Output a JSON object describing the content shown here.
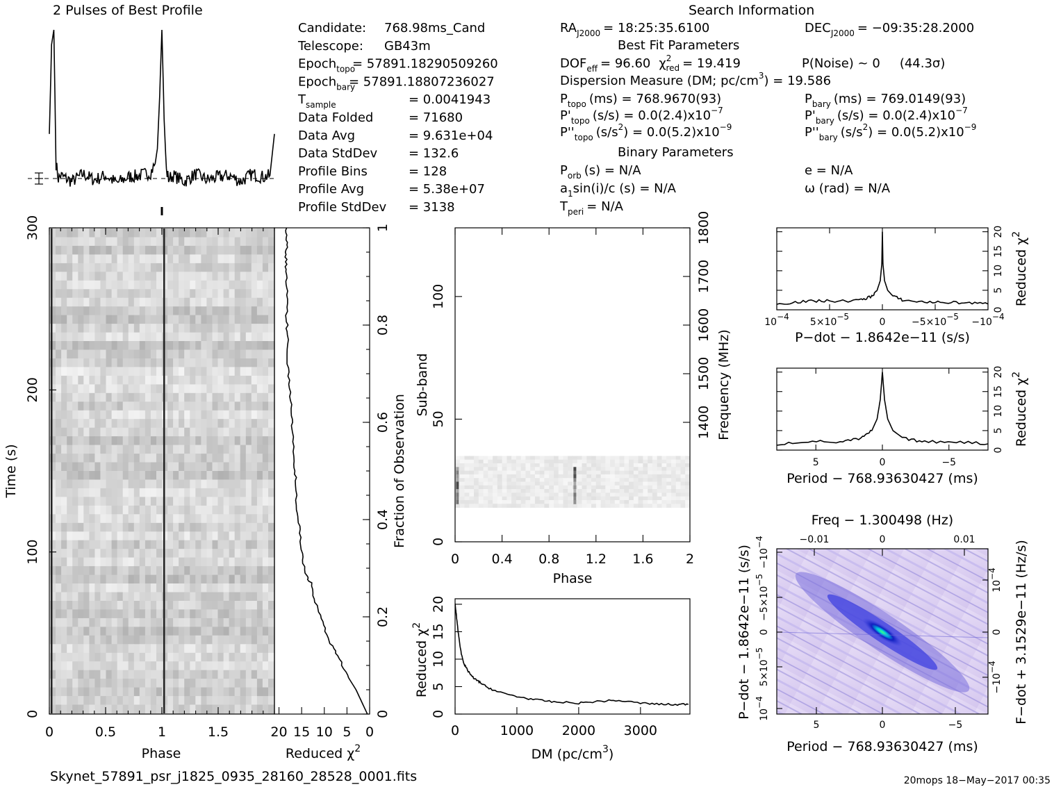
{
  "profile": {
    "title": "2 Pulses of Best Profile",
    "phases": [
      0.0,
      0.02,
      0.04,
      0.06,
      0.08,
      0.1,
      0.2,
      0.3,
      0.4,
      0.5,
      0.6,
      0.7,
      0.8,
      0.9,
      0.94,
      0.96,
      0.98,
      1.0,
      1.02,
      1.04,
      1.06,
      1.1,
      1.2,
      1.3,
      1.4,
      1.5,
      1.6,
      1.7,
      1.8,
      1.9,
      1.96,
      2.0
    ],
    "values": [
      0.3,
      0.9,
      1.0,
      0.1,
      0.0,
      0.02,
      -0.02,
      0.03,
      -0.01,
      0.02,
      -0.03,
      0.01,
      0.02,
      0.04,
      0.1,
      0.2,
      0.55,
      1.0,
      0.4,
      0.05,
      0.0,
      0.02,
      -0.02,
      0.03,
      -0.01,
      0.01,
      0.02,
      -0.02,
      0.03,
      0.01,
      0.02,
      0.3
    ]
  },
  "header": {
    "search_title": "Search Information",
    "left_col": [
      {
        "label": "Candidate:",
        "value": "768.98ms_Cand"
      },
      {
        "label": "Telescope:",
        "value": "GB43m"
      },
      {
        "label": "Epoch",
        "sub": "topo",
        "value": "= 57891.18290509260"
      },
      {
        "label": "Epoch",
        "sub": "bary",
        "value": "= 57891.18807236027"
      },
      {
        "label": "T",
        "sub": "sample",
        "value": "=   0.0041943"
      },
      {
        "label": "Data Folded",
        "value": "=   71680"
      },
      {
        "label": "Data Avg",
        "value": "=   9.631e+04"
      },
      {
        "label": "Data StdDev",
        "value": "=   132.6"
      },
      {
        "label": "Profile Bins",
        "value": "=   128"
      },
      {
        "label": "Profile Avg",
        "value": "=   5.38e+07"
      },
      {
        "label": "Profile StdDev",
        "value": "=   3138"
      }
    ],
    "ra": "RA",
    "ra_sub": "J2000",
    "ra_value": "= 18:25:35.6100",
    "dec": "DEC",
    "dec_sub": "J2000",
    "dec_value": "= −09:35:28.2000",
    "best_fit_title": "Best Fit Parameters",
    "dof_line": "DOF",
    "dof_sub": "eff",
    "dof_value": "= 96.60",
    "chi_label": "χ",
    "chi_sup": "2",
    "chi_sub": "red",
    "chi_value": "= 19.419",
    "pnoise": "P(Noise) ~ 0",
    "sigma": "(44.3σ)",
    "dm_line": "Dispersion Measure (DM; pc/cm",
    "dm_sup": "3",
    "dm_value": ") = 19.586",
    "ptopo": "P",
    "ptopo_sub": "topo",
    "ptopo_value": "(ms) =  768.9670(93)",
    "pbary": "P",
    "pbary_sub": "bary",
    "pbary_value": "(ms) =  769.0149(93)",
    "pdtopo": "P'",
    "pdtopo_sub": "topo",
    "pdtopo_value": "(s/s) = 0.0(2.4)x10",
    "pdtopo_exp": "−7",
    "pdbary": "P'",
    "pdbary_sub": "bary",
    "pdbary_value": "(s/s) = 0.0(2.4)x10",
    "pdbary_exp": "−7",
    "pddtopo": "P''",
    "pddtopo_sub": "topo",
    "pddtopo_value": "(s/s",
    "pddtopo_sup": "2",
    "pddtopo_value2": ") = 0.0(5.2)x10",
    "pddtopo_exp": "−9",
    "pddbary": "P''",
    "pddbary_sub": "bary",
    "pddbary_value": "(s/s",
    "pddbary_sup": "2",
    "pddbary_value2": ") = 0.0(5.2)x10",
    "pddbary_exp": "−9",
    "binary_title": "Binary Parameters",
    "porb": "P",
    "porb_sub": "orb",
    "porb_value": "(s) = N/A",
    "ecc": "e = N/A",
    "a1sini": "a",
    "a1sini_sub": "1",
    "a1sini_value": "sin(i)/c (s) = N/A",
    "omega": "ω (rad) = N/A",
    "tperi": "T",
    "tperi_sub": "peri",
    "tperi_value": "= N/A"
  },
  "footer": {
    "filename": "Skynet_57891_psr_j1825_0935_28160_28528_0001.fits",
    "stamp": "20mops 18−May−2017 00:35"
  },
  "chart_data": [
    {
      "type": "heatmap",
      "name": "time-phase",
      "xlabel": "Phase",
      "ylabel": "Time (s)",
      "xlim": [
        0,
        2
      ],
      "ylim": [
        0,
        300
      ],
      "xticks": [
        "0",
        "0.5",
        "1",
        "1.5"
      ],
      "yticks": [
        "0",
        "100",
        "200",
        "300"
      ],
      "pulse_phases": [
        0.02,
        1.02
      ]
    },
    {
      "type": "line",
      "name": "reduced-chi2-vs-time",
      "xlabel_text": "Reduced χ",
      "xlabel_sup": "2",
      "ylabel": "Fraction of Observation",
      "xticks": [
        "20",
        "15",
        "10",
        "5",
        "0"
      ],
      "yticks": [
        "0",
        "0.2",
        "0.4",
        "0.6",
        "0.8",
        "1"
      ],
      "xlim": [
        21,
        0
      ],
      "ylim": [
        0,
        1
      ],
      "x": [
        0.5,
        1.5,
        3,
        5,
        7,
        9,
        10.5,
        12,
        13,
        14.3,
        15,
        15.5,
        16,
        16.3,
        16.7,
        17,
        17.3,
        17.6,
        18,
        18.2,
        18.3,
        18.2,
        18.4,
        18.5,
        18.2,
        18.3
      ],
      "y": [
        0,
        0.02,
        0.05,
        0.08,
        0.12,
        0.15,
        0.19,
        0.23,
        0.27,
        0.29,
        0.33,
        0.38,
        0.42,
        0.48,
        0.52,
        0.58,
        0.62,
        0.67,
        0.72,
        0.78,
        0.82,
        0.87,
        0.91,
        0.94,
        0.97,
        1.0
      ]
    },
    {
      "type": "heatmap",
      "name": "subband-phase",
      "xlabel": "Phase",
      "ylabel": "Sub-band",
      "ylabel_right": "Frequency (MHz)",
      "xlim": [
        0,
        2
      ],
      "ylim": [
        0,
        128
      ],
      "xticks": [
        "0",
        "0.4",
        "0.8",
        "1.2",
        "1.6",
        "2"
      ],
      "yticks": [
        "0",
        "50",
        "100"
      ],
      "yticks_right": [
        "1400",
        "1500",
        "1600",
        "1700",
        "1800"
      ],
      "active_subbands": [
        14,
        35
      ],
      "pulse_phases": [
        0.02,
        1.02
      ]
    },
    {
      "type": "line",
      "name": "reduced-chi2-vs-dm",
      "xlabel": "DM (pc/cm",
      "xlabel_sup": "3",
      "xlabel_end": ")",
      "ylabel": "Reduced χ",
      "ylabel_sup": "2",
      "xlim": [
        0,
        3800
      ],
      "ylim": [
        0,
        21
      ],
      "xticks": [
        "0",
        "1000",
        "2000",
        "3000"
      ],
      "yticks": [
        "0",
        "5",
        "10",
        "15",
        "20"
      ],
      "x": [
        0,
        20,
        60,
        100,
        150,
        200,
        300,
        400,
        500,
        700,
        1000,
        1300,
        1600,
        2000,
        2300,
        2600,
        3000,
        3300,
        3600,
        3800
      ],
      "y": [
        20,
        18,
        14,
        11,
        9,
        8,
        6.5,
        5.8,
        5,
        4,
        3.2,
        2.6,
        2.2,
        2.0,
        2.3,
        2.5,
        2.0,
        1.8,
        1.7,
        1.9
      ]
    },
    {
      "type": "line",
      "name": "reduced-chi2-vs-pdot",
      "xlabel": "P−dot − 1.8642e−11 (s/s)",
      "ylabel": "Reduced χ",
      "ylabel_sup": "2",
      "xticks": [
        "10",
        "5×10",
        "0",
        "−5×10",
        "−10"
      ],
      "xticks_sup": [
        "−4",
        "−5",
        "",
        "−5",
        "−4"
      ],
      "yticks": [
        "0",
        "5",
        "10",
        "15",
        "20"
      ],
      "xlim": [
        1,
        -1
      ],
      "ylim": [
        0,
        21
      ],
      "x": [
        1,
        0.8,
        0.6,
        0.4,
        0.2,
        0.1,
        0.05,
        0.02,
        0.005,
        0,
        -0.005,
        -0.02,
        -0.05,
        -0.1,
        -0.2,
        -0.4,
        -0.6,
        -0.8,
        -1
      ],
      "y": [
        1.5,
        2,
        2.3,
        2.2,
        2.5,
        3.5,
        5,
        7.5,
        12,
        20,
        12,
        7.5,
        5,
        3.5,
        2.4,
        2.0,
        1.9,
        1.8,
        1.5
      ]
    },
    {
      "type": "line",
      "name": "reduced-chi2-vs-period",
      "xlabel": "Period − 768.93630427 (ms)",
      "ylabel": "Reduced χ",
      "ylabel_sup": "2",
      "xticks": [
        "5",
        "0",
        "−5"
      ],
      "yticks": [
        "0",
        "5",
        "10",
        "15",
        "20"
      ],
      "xlim": [
        10,
        -10
      ],
      "ylim": [
        0,
        21
      ],
      "x": [
        10,
        7,
        4,
        2,
        1,
        0.5,
        0.2,
        0,
        -0.2,
        -0.5,
        -1,
        -2,
        -4,
        -7,
        -10
      ],
      "y": [
        1.5,
        2.3,
        2.0,
        3.0,
        5,
        8,
        13,
        20,
        13,
        8,
        5,
        3.0,
        2.1,
        2.2,
        1.6
      ]
    },
    {
      "type": "heatmap",
      "name": "period-pdot-plane",
      "title": "Freq − 1.300498 (Hz)",
      "xlabel": "Period − 768.93630427 (ms)",
      "ylabel": "P−dot − 1.8642e−11 (s/s)",
      "ylabel_right": "F−dot + 3.1529e−11 (Hz/s)",
      "xticks": [
        "5",
        "0",
        "−5"
      ],
      "xticks_top": [
        "−0.01",
        "0",
        "0.01"
      ],
      "yticks": [
        "10",
        "5×10",
        "0",
        "−5×10",
        "−10"
      ],
      "yticks_sup": [
        "−4",
        "−5",
        "",
        "−5",
        "−4"
      ],
      "yticks_right": [
        "−10",
        "0",
        "10"
      ],
      "yticks_right_sup": [
        "−4",
        "",
        "−4"
      ],
      "colormap": [
        "#ffffff",
        "#d8c8f0",
        "#8f86e8",
        "#3d40e0",
        "#1020c0",
        "#00c8e0",
        "#40ff80"
      ]
    }
  ]
}
